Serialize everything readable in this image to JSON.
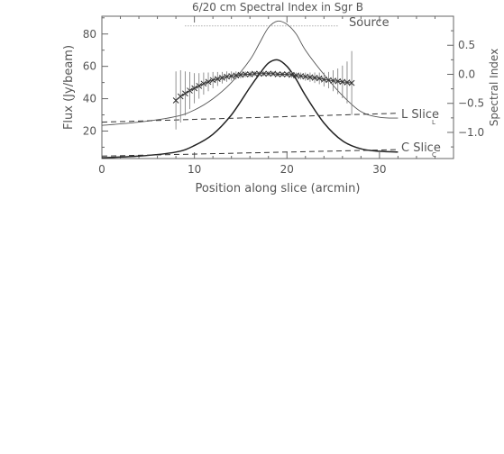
{
  "chart_data": {
    "type": "line",
    "title": "6/20 cm Spectral Index in Sgr B",
    "xlabel": "Position along slice (arcmin)",
    "ylabel_left": "Flux (Jy/beam)",
    "ylabel_right": "Spectral Index",
    "xlim": [
      0,
      38
    ],
    "ylim_left": [
      3,
      91
    ],
    "ylim_right": [
      -1.45,
      1.0
    ],
    "x_ticks": [
      0,
      10,
      20,
      30
    ],
    "y_ticks_left": [
      20,
      40,
      60,
      80
    ],
    "y_ticks_right": [
      0.5,
      0.0,
      -0.5,
      -1.0
    ],
    "y_ticks_right_labels": [
      "0.5",
      "0.0",
      "−0.5",
      "−1.0"
    ],
    "annotations": {
      "source": "Source",
      "l_slice": "L Slice",
      "c_slice": "C Slice",
      "l_mark": "L",
      "c_mark": "C"
    },
    "series": [
      {
        "name": "L Slice",
        "style": "solid-thin",
        "x": [
          0,
          4,
          8,
          10,
          12,
          14,
          16,
          17,
          18,
          19,
          20,
          21,
          22,
          24,
          26,
          28,
          30,
          32
        ],
        "y": [
          23.5,
          25.5,
          29,
          33,
          40,
          50,
          64,
          74,
          84,
          88,
          86,
          80,
          70,
          55,
          42,
          32,
          28.5,
          28
        ]
      },
      {
        "name": "C Slice",
        "style": "solid-thick",
        "x": [
          0,
          4,
          8,
          10,
          12,
          14,
          16,
          17,
          18,
          19,
          20,
          21,
          22,
          24,
          26,
          28,
          30,
          32
        ],
        "y": [
          3.5,
          4.5,
          7,
          11,
          18,
          30,
          47,
          55,
          62,
          64,
          60,
          52,
          42,
          25,
          14,
          9,
          7.5,
          7
        ]
      },
      {
        "name": "L baseline",
        "style": "dashed",
        "x": [
          0,
          32
        ],
        "y": [
          25.5,
          31
        ]
      },
      {
        "name": "C baseline",
        "style": "dashed",
        "x": [
          0,
          32
        ],
        "y": [
          4.5,
          8.5
        ]
      },
      {
        "name": "Source",
        "style": "dotted",
        "x": [
          9,
          25.5
        ],
        "y": [
          85,
          85
        ]
      },
      {
        "name": "Spectral Index",
        "style": "cross-errorbar",
        "axis": "right",
        "x": [
          8,
          8.5,
          9,
          9.5,
          10,
          10.5,
          11,
          11.5,
          12,
          12.5,
          13,
          13.5,
          14,
          14.5,
          15,
          15.5,
          16,
          16.5,
          17,
          17.5,
          18,
          18.5,
          19,
          19.5,
          20,
          20.5,
          21,
          21.5,
          22,
          22.5,
          23,
          23.5,
          24,
          24.5,
          25,
          25.5,
          26,
          26.5,
          27
        ],
        "y": [
          -0.45,
          -0.38,
          -0.33,
          -0.28,
          -0.24,
          -0.2,
          -0.16,
          -0.13,
          -0.1,
          -0.08,
          -0.06,
          -0.04,
          -0.03,
          -0.02,
          -0.01,
          0.0,
          0.0,
          0.01,
          0.01,
          0.01,
          0.01,
          0.01,
          0.0,
          0.0,
          0.0,
          -0.01,
          -0.02,
          -0.03,
          -0.04,
          -0.05,
          -0.06,
          -0.07,
          -0.09,
          -0.1,
          -0.11,
          -0.12,
          -0.13,
          -0.14,
          -0.15
        ],
        "err": [
          0.5,
          0.45,
          0.38,
          0.32,
          0.26,
          0.22,
          0.19,
          0.16,
          0.14,
          0.12,
          0.1,
          0.09,
          0.08,
          0.07,
          0.06,
          0.05,
          0.05,
          0.04,
          0.04,
          0.04,
          0.04,
          0.04,
          0.04,
          0.04,
          0.04,
          0.05,
          0.05,
          0.06,
          0.07,
          0.08,
          0.09,
          0.1,
          0.12,
          0.14,
          0.18,
          0.22,
          0.28,
          0.36,
          0.55
        ]
      }
    ]
  }
}
